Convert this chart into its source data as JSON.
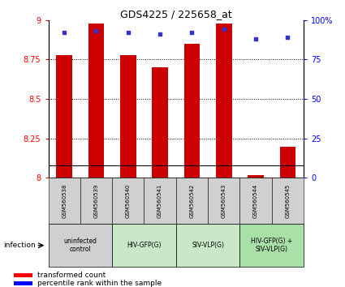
{
  "title": "GDS4225 / 225658_at",
  "samples": [
    "GSM560538",
    "GSM560539",
    "GSM560540",
    "GSM560541",
    "GSM560542",
    "GSM560543",
    "GSM560544",
    "GSM560545"
  ],
  "red_values": [
    8.78,
    8.98,
    8.78,
    8.7,
    8.85,
    8.98,
    8.02,
    8.2
  ],
  "blue_values": [
    92,
    93,
    92,
    91,
    92,
    94,
    88,
    89
  ],
  "ylim_left": [
    8.0,
    9.0
  ],
  "ylim_right": [
    0,
    100
  ],
  "yticks_left": [
    8.0,
    8.25,
    8.5,
    8.75,
    9.0
  ],
  "yticks_right": [
    0,
    25,
    50,
    75,
    100
  ],
  "ytick_labels_left": [
    "8",
    "8.25",
    "8.5",
    "8.75",
    "9"
  ],
  "ytick_labels_right": [
    "0",
    "25",
    "50",
    "75",
    "100%"
  ],
  "groups": [
    {
      "label": "uninfected\ncontrol",
      "start": 0,
      "end": 2,
      "color": "#d0d0d0"
    },
    {
      "label": "HIV-GFP(G)",
      "start": 2,
      "end": 4,
      "color": "#c8e8c8"
    },
    {
      "label": "SIV-VLP(G)",
      "start": 4,
      "end": 6,
      "color": "#c8e8c8"
    },
    {
      "label": "HIV-GFP(G) +\nSIV-VLP(G)",
      "start": 6,
      "end": 8,
      "color": "#a8e0a8"
    }
  ],
  "bar_color": "#cc0000",
  "dot_color": "#3333cc",
  "infection_label": "infection",
  "legend1_label": "transformed count",
  "legend2_label": "percentile rank within the sample",
  "sample_label_bg": "#d0d0d0",
  "border_color": "#888888"
}
